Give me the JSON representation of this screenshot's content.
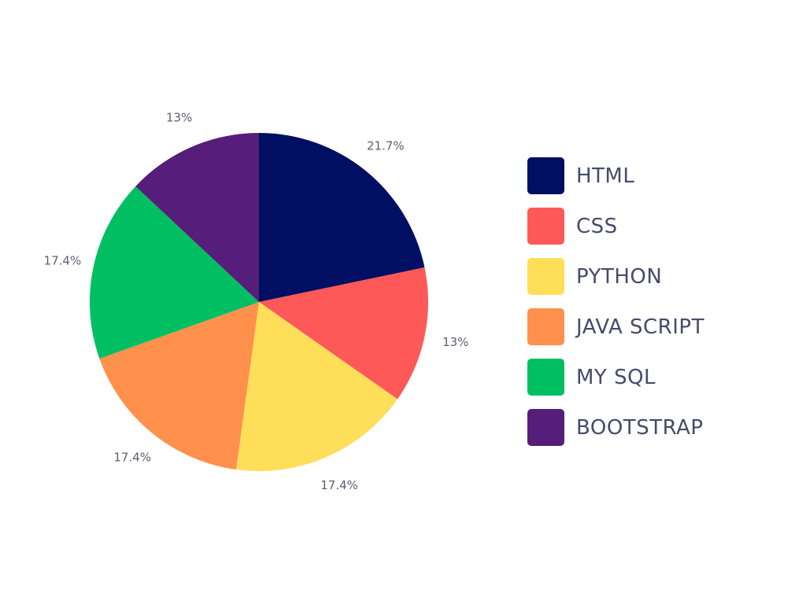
{
  "chart_data": {
    "type": "pie",
    "title": "",
    "start_angle_deg": 0,
    "direction": "clockwise",
    "legend_position": "right",
    "slices": [
      {
        "label": "HTML",
        "value": 21.7,
        "value_label": "21.7%",
        "color": "#000f61"
      },
      {
        "label": "CSS",
        "value": 13,
        "value_label": "13%",
        "color": "#ff5858"
      },
      {
        "label": "PYTHON",
        "value": 17.4,
        "value_label": "17.4%",
        "color": "#ffde59"
      },
      {
        "label": "JAVA SCRIPT",
        "value": 17.4,
        "value_label": "17.4%",
        "color": "#ff914d"
      },
      {
        "label": "MY SQL",
        "value": 17.4,
        "value_label": "17.4%",
        "color": "#00bf63"
      },
      {
        "label": "BOOTSTRAP",
        "value": 13,
        "value_label": "13%",
        "color": "#561e7a"
      }
    ]
  }
}
